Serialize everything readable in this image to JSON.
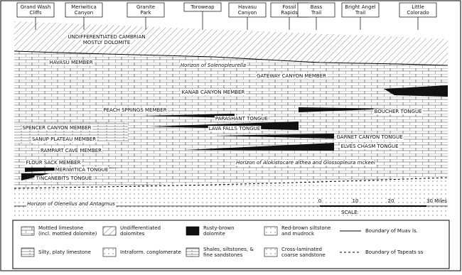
{
  "locations": [
    {
      "lines": [
        "Grand Wash",
        "Cliffs"
      ]
    },
    {
      "lines": [
        "Meriwitica",
        "Canyon"
      ]
    },
    {
      "lines": [
        "Granite",
        "Park"
      ]
    },
    {
      "lines": [
        "Toroweap"
      ]
    },
    {
      "lines": [
        "Havasu",
        "Canyon"
      ]
    },
    {
      "lines": [
        "Fossil",
        "Rapids"
      ]
    },
    {
      "lines": [
        "Bass",
        "Trail"
      ]
    },
    {
      "lines": [
        "Bright Angel",
        "Trail"
      ]
    },
    {
      "lines": [
        "Little",
        "Colorado"
      ]
    }
  ],
  "units": [
    "UNDIFFERENTIATED CAMBRIAN",
    "MOSTLY DOLOMITE",
    "HAVASU MEMBER",
    "Horizon of Solenopleurella",
    "GATEWAY CANYON MEMBER",
    "KANAB CANYON MEMBER",
    "PEACH SPRINGS MEMBER",
    "BOUCHER TONGUE",
    "PARASHANT TONGUE",
    "SPENCER CANYON MEMBER",
    "LAVA FALLS TONGUE",
    "SANUP PLATEAU MEMBER",
    "GARNET CANYON TONGUE",
    "ELVES CHASM TONGUE",
    "RAMPART CAVE MEMBER",
    "FLOUR SACK MEMBER",
    "Horizon of Alokistocare althea and Glossopleura mckeei",
    "MERIWITICA TONGUE",
    "TINCANEBITS TONGUE",
    "Horizon of Olenellus and Antagmus"
  ],
  "scale": {
    "title": "SCALE:",
    "ticks": [
      "0",
      "10",
      "20",
      "30 Miles"
    ]
  },
  "legend": [
    {
      "lines": [
        "Mottled limestone",
        "(incl. mottled dolomite)"
      ]
    },
    {
      "lines": [
        "Undifferentiated",
        "dolomites"
      ]
    },
    {
      "lines": [
        "Rusty-brown",
        "dolomite"
      ]
    },
    {
      "lines": [
        "Red-brown siltstone",
        "and mudrock"
      ]
    },
    {
      "lines": [
        "Boundary of Muav ls."
      ]
    },
    {
      "lines": [
        "Silty, platy limestone"
      ]
    },
    {
      "lines": [
        "Intraform. conglomerate"
      ]
    },
    {
      "lines": [
        "Shales, siltstones, &",
        "fine sandstones"
      ]
    },
    {
      "lines": [
        "Cross-laminated",
        "coarse sandstone"
      ]
    },
    {
      "lines": [
        "Boundary of Tapeats ss"
      ]
    }
  ]
}
